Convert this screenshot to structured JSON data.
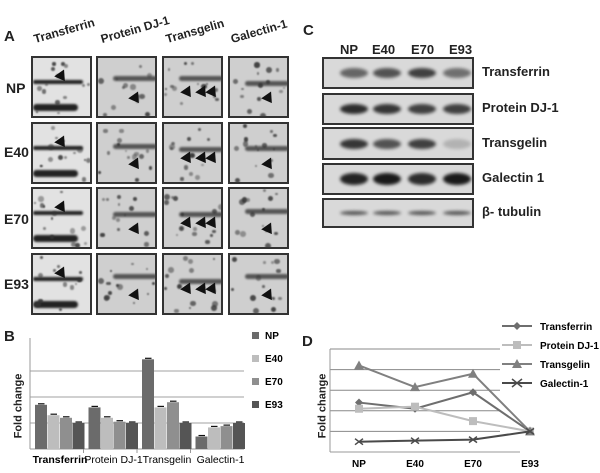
{
  "panel_a": {
    "letter": "A",
    "columns": [
      "Transferrin",
      "Protein DJ-1",
      "Transgelin",
      "Galectin-1"
    ],
    "rows": [
      "NP",
      "E40",
      "E70",
      "E93"
    ]
  },
  "panel_c": {
    "letter": "C",
    "lanes": [
      "NP",
      "E40",
      "E70",
      "E93"
    ],
    "blots": [
      "Transferrin",
      "Protein DJ-1",
      "Transgelin",
      "Galectin 1",
      "β- tubulin"
    ]
  },
  "panel_b": {
    "letter": "B",
    "ylabel": "Fold change"
  },
  "panel_d": {
    "letter": "D",
    "ylabel": "Fold change"
  },
  "colors": {
    "NP": "#6b6b6b",
    "E40": "#bdbdbd",
    "E70": "#8f8f8f",
    "E93": "#555555",
    "Transferrin": "#6e6e6e",
    "Protein DJ-1": "#bdbdbd",
    "Transgelin": "#808080",
    "Galectin-1": "#4a4a4a"
  },
  "chart_data": [
    {
      "panel": "B",
      "type": "bar",
      "title": "",
      "xlabel": "",
      "ylabel": "Fold change",
      "categories": [
        "Transferrin",
        "Protein DJ-1",
        "Transgelin",
        "Galectin-1"
      ],
      "series": [
        {
          "name": "NP",
          "values": [
            1.7,
            1.6,
            3.45,
            0.48
          ]
        },
        {
          "name": "E40",
          "values": [
            1.3,
            1.2,
            1.6,
            0.83
          ]
        },
        {
          "name": "E70",
          "values": [
            1.2,
            1.05,
            1.8,
            0.88
          ]
        },
        {
          "name": "E93",
          "values": [
            1.0,
            1.0,
            1.0,
            1.0
          ]
        }
      ],
      "error_bars": true,
      "ylim": [
        0,
        3.5
      ],
      "gridlines": [
        1,
        2,
        3
      ],
      "y_tick_labels_visible": false,
      "legend": {
        "position": "right-top",
        "entries": [
          "NP",
          "E40",
          "E70",
          "E93"
        ]
      }
    },
    {
      "panel": "D",
      "type": "line",
      "title": "",
      "xlabel": "",
      "ylabel": "Fold change",
      "x": [
        "NP",
        "E40",
        "E70",
        "E93"
      ],
      "series": [
        {
          "name": "Transferrin",
          "marker": "diamond",
          "values": [
            2.4,
            2.1,
            2.9,
            1.0
          ]
        },
        {
          "name": "Protein DJ-1",
          "marker": "square",
          "values": [
            2.1,
            2.2,
            1.5,
            1.0
          ]
        },
        {
          "name": "Transgelin",
          "marker": "triangle",
          "values": [
            4.2,
            3.15,
            3.8,
            1.0
          ]
        },
        {
          "name": "Galectin-1",
          "marker": "x",
          "values": [
            0.5,
            0.55,
            0.6,
            1.0
          ]
        }
      ],
      "error_bars": true,
      "ylim": [
        0,
        5
      ],
      "gridlines": [
        1,
        2,
        3,
        4,
        5
      ],
      "y_tick_labels_visible": false,
      "legend": {
        "position": "right-top",
        "entries": [
          "Transferrin",
          "Protein DJ-1",
          "Transgelin",
          "Galectin-1"
        ]
      }
    }
  ]
}
